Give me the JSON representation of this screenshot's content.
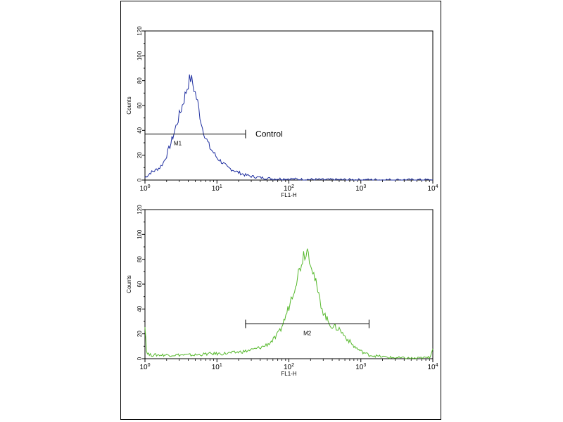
{
  "chart_data": [
    {
      "type": "line",
      "title": "",
      "xlabel": "FL1-H",
      "ylabel": "Counts",
      "x_scale": "log",
      "xlim": [
        1,
        10000
      ],
      "ylim": [
        0,
        120
      ],
      "x_ticks": [
        {
          "base": "10",
          "exp": "0"
        },
        {
          "base": "10",
          "exp": "1"
        },
        {
          "base": "10",
          "exp": "2"
        },
        {
          "base": "10",
          "exp": "3"
        },
        {
          "base": "10",
          "exp": "4"
        }
      ],
      "y_ticks": [
        "0",
        "20",
        "40",
        "60",
        "80",
        "100",
        "120"
      ],
      "color": "#1f2fa0",
      "series": [
        {
          "x": [
            1.0,
            1.1,
            1.2,
            1.4,
            1.6,
            1.8,
            2.0,
            2.3,
            2.6,
            3.0,
            3.3,
            3.6,
            4.0,
            4.3,
            4.6,
            5.0,
            5.4,
            5.8,
            6.3,
            7.0,
            8.0,
            9.0,
            10,
            12,
            14,
            17,
            20,
            25,
            30,
            40,
            60,
            80,
            100,
            150,
            200,
            300,
            500,
            1000,
            2000,
            4000,
            10000
          ],
          "y": [
            2,
            4,
            6,
            8,
            10,
            14,
            20,
            30,
            40,
            52,
            60,
            68,
            78,
            82,
            78,
            70,
            62,
            52,
            42,
            34,
            26,
            22,
            18,
            14,
            10,
            8,
            6,
            4,
            3,
            2,
            1,
            1,
            1,
            0.5,
            0.5,
            0.3,
            0.3,
            0.2,
            0.2,
            0.2,
            0.1
          ]
        }
      ],
      "annotations": [
        {
          "type": "marker",
          "label": "M1",
          "x_range": [
            1,
            25
          ],
          "y": 37
        },
        {
          "type": "text",
          "text": "Control",
          "x": 30,
          "y": 37
        }
      ]
    },
    {
      "type": "line",
      "title": "",
      "xlabel": "FL1-H",
      "ylabel": "Counts",
      "x_scale": "log",
      "xlim": [
        1,
        10000
      ],
      "ylim": [
        0,
        120
      ],
      "x_ticks": [
        {
          "base": "10",
          "exp": "0"
        },
        {
          "base": "10",
          "exp": "1"
        },
        {
          "base": "10",
          "exp": "2"
        },
        {
          "base": "10",
          "exp": "3"
        },
        {
          "base": "10",
          "exp": "4"
        }
      ],
      "y_ticks": [
        "0",
        "20",
        "40",
        "60",
        "80",
        "100",
        "120"
      ],
      "color": "#55b82b",
      "series": [
        {
          "x": [
            1.0,
            1.05,
            1.15,
            1.5,
            2,
            3,
            5,
            8,
            12,
            18,
            25,
            35,
            45,
            55,
            65,
            75,
            85,
            100,
            120,
            140,
            160,
            180,
            200,
            230,
            260,
            300,
            350,
            400,
            500,
            600,
            800,
            1000,
            1300,
            1700,
            2500,
            4000,
            6000,
            9000,
            10000
          ],
          "y": [
            28,
            6,
            3,
            3,
            3,
            3,
            3,
            4,
            4,
            5,
            6,
            8,
            10,
            13,
            17,
            22,
            30,
            42,
            58,
            72,
            84,
            88,
            80,
            64,
            50,
            38,
            30,
            26,
            24,
            18,
            10,
            6,
            3,
            2,
            1,
            0.5,
            0.3,
            1,
            8
          ]
        }
      ],
      "annotations": [
        {
          "type": "marker",
          "label": "M2",
          "x_range": [
            25,
            1300
          ],
          "y": 28
        }
      ]
    }
  ]
}
